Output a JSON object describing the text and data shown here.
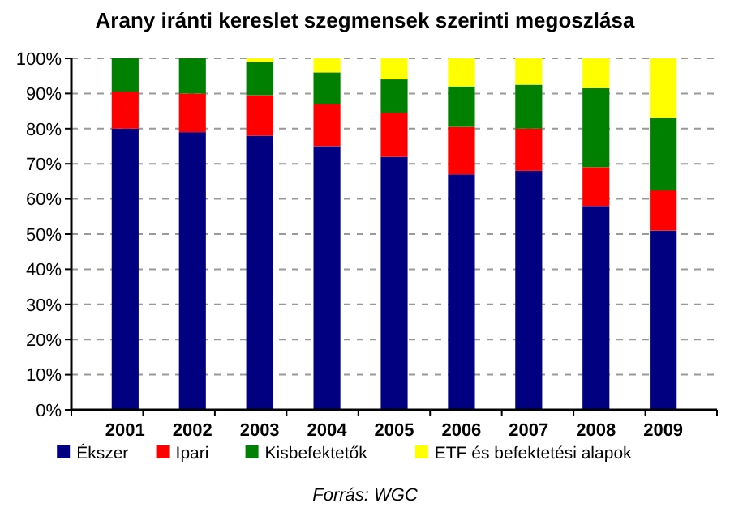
{
  "chart_data": {
    "type": "bar",
    "title": "Arany iránti kereslet szegmensek szerinti megoszlása",
    "stacked": true,
    "categories": [
      "2001",
      "2002",
      "2003",
      "2004",
      "2005",
      "2006",
      "2007",
      "2008",
      "2009"
    ],
    "series": [
      {
        "name": "Ékszer",
        "color": "#000080",
        "values": [
          80,
          79,
          78,
          75,
          72,
          67,
          68,
          58,
          51
        ]
      },
      {
        "name": "Ipari",
        "color": "#ff0000",
        "values": [
          10.5,
          11,
          11.5,
          12,
          12.5,
          13.5,
          12,
          11,
          11.5
        ]
      },
      {
        "name": "Kisbefektetők",
        "color": "#008000",
        "values": [
          9.5,
          10,
          9.5,
          9,
          9.5,
          11.5,
          12.5,
          22.5,
          20.5
        ]
      },
      {
        "name": "ETF és befektetési alapok",
        "color": "#ffff00",
        "values": [
          0,
          0,
          1,
          4,
          6,
          8,
          7.5,
          8.5,
          17
        ]
      }
    ],
    "ylim": [
      0,
      100
    ],
    "yticks": [
      {
        "value": 0,
        "label": "0%"
      },
      {
        "value": 10,
        "label": "10%"
      },
      {
        "value": 20,
        "label": "20%"
      },
      {
        "value": 30,
        "label": "30%"
      },
      {
        "value": 40,
        "label": "40%"
      },
      {
        "value": 50,
        "label": "50%"
      },
      {
        "value": 60,
        "label": "60%"
      },
      {
        "value": 70,
        "label": "70%"
      },
      {
        "value": 80,
        "label": "80%"
      },
      {
        "value": 90,
        "label": "90%"
      },
      {
        "value": 100,
        "label": "100%"
      }
    ],
    "grid": "y",
    "legend": "bottom",
    "annotations": [
      "Forrás: WGC"
    ]
  }
}
